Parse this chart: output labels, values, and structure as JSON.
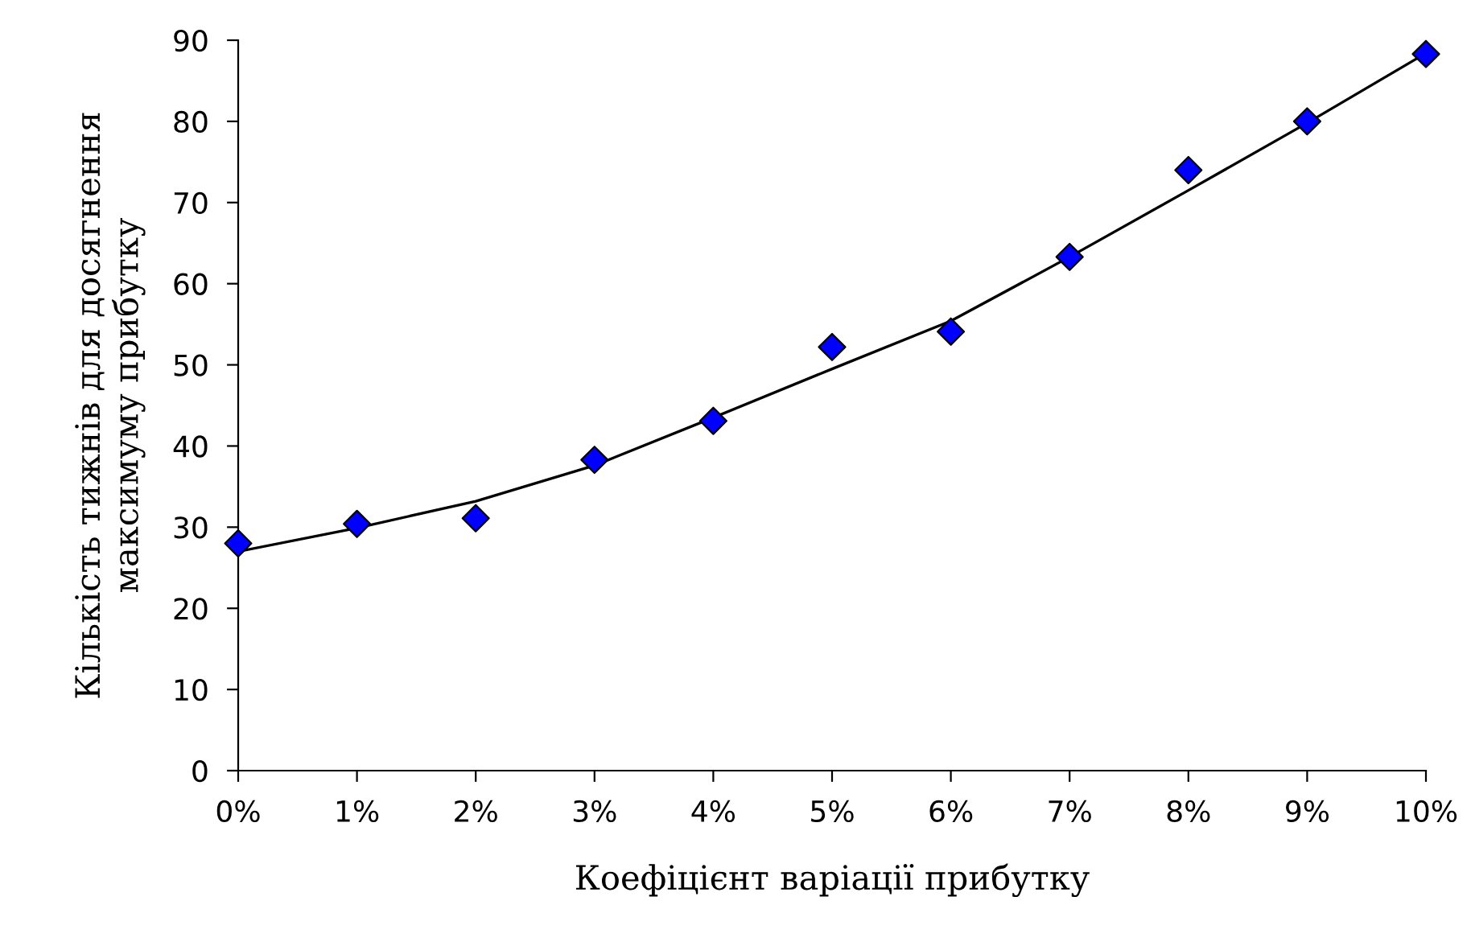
{
  "chart_data": {
    "type": "scatter",
    "xlabel": "Коефіцієнт варіації прибутку",
    "ylabel": "Кількість тижнів для досягнення\nмаксимуму прибутку",
    "xlim": [
      0,
      10
    ],
    "ylim": [
      0,
      90
    ],
    "xticks": [
      {
        "value": 0,
        "label": "0%"
      },
      {
        "value": 1,
        "label": "1%"
      },
      {
        "value": 2,
        "label": "2%"
      },
      {
        "value": 3,
        "label": "3%"
      },
      {
        "value": 4,
        "label": "4%"
      },
      {
        "value": 5,
        "label": "5%"
      },
      {
        "value": 6,
        "label": "6%"
      },
      {
        "value": 7,
        "label": "7%"
      },
      {
        "value": 8,
        "label": "8%"
      },
      {
        "value": 9,
        "label": "9%"
      },
      {
        "value": 10,
        "label": "10%"
      }
    ],
    "yticks": [
      0,
      10,
      20,
      30,
      40,
      50,
      60,
      70,
      80,
      90
    ],
    "grid": false,
    "legend": false,
    "series": [
      {
        "color": "#0000ff",
        "marker": "diamond",
        "x": [
          0,
          1,
          2,
          3,
          4,
          5,
          6,
          7,
          8,
          9,
          10
        ],
        "values": [
          28,
          30.4,
          31.1,
          38.3,
          43.1,
          52.2,
          54.1,
          63.3,
          74,
          80,
          88.3
        ]
      },
      {
        "type": "line",
        "color": "#000000",
        "marker": "none",
        "line_style": "solid",
        "x": [
          0,
          1,
          2,
          3,
          4,
          5,
          6,
          7,
          8,
          9,
          10
        ],
        "values": [
          27,
          29.9,
          33.2,
          37.6,
          43.5,
          49.5,
          55.4,
          63.3,
          71.5,
          79.8,
          88.4
        ]
      }
    ]
  }
}
